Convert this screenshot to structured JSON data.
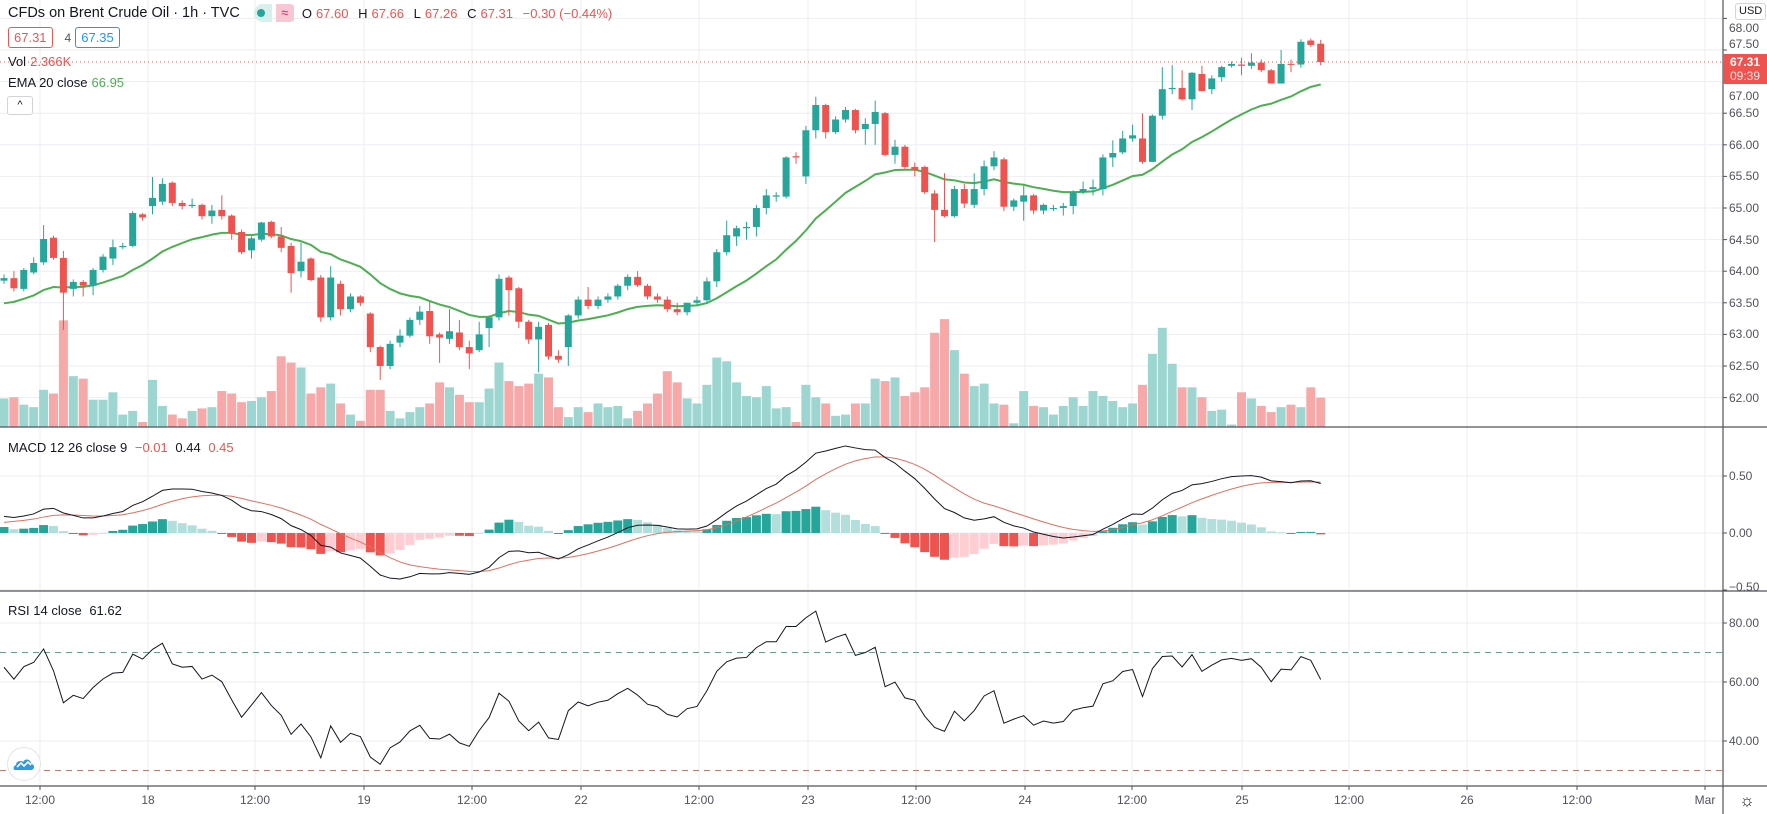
{
  "header": {
    "title": "CFDs on Brent Crude Oil · 1h · TVC",
    "status_icons": [
      "market-open-dot-icon",
      "delayed-data-icon"
    ],
    "delayed_glyph": "≈",
    "ohlc": {
      "o_label": "O",
      "o": "67.60",
      "h_label": "H",
      "h": "67.66",
      "l_label": "L",
      "l": "67.26",
      "c_label": "C",
      "c": "67.31",
      "change": "−0.30 (−0.44%)"
    }
  },
  "trade": {
    "sell": "67.31",
    "spread": "4",
    "buy": "67.35"
  },
  "legends": {
    "vol_label": "Vol",
    "vol_value": "2.366K",
    "ema_label": "EMA 20 close",
    "ema_value": "66.95",
    "collapse_glyph": "^",
    "macd_label": "MACD 12 26 close 9",
    "macd_hist": "−0.01",
    "macd_line": "0.44",
    "macd_signal": "0.45",
    "rsi_label": "RSI 14 close",
    "rsi_value": "61.62"
  },
  "price_axis": {
    "currency": "USD",
    "ticks": [
      "68.00",
      "67.50",
      "67.00",
      "66.50",
      "66.00",
      "65.50",
      "65.00",
      "64.50",
      "64.00",
      "63.50",
      "63.00",
      "62.50",
      "62.00"
    ],
    "last_price": "67.31",
    "countdown": "09:39"
  },
  "macd_axis": {
    "ticks": [
      "0.50",
      "0.00",
      "−0.50"
    ]
  },
  "rsi_axis": {
    "ticks": [
      "80.00",
      "60.00",
      "40.00"
    ]
  },
  "time_axis": {
    "labels": [
      "12:00",
      "18",
      "12:00",
      "19",
      "12:00",
      "22",
      "12:00",
      "23",
      "12:00",
      "24",
      "12:00",
      "25",
      "12:00",
      "26",
      "12:00",
      "Mar"
    ]
  },
  "settings_glyph": "☼",
  "colors": {
    "up": "#26a69a",
    "down": "#ef5350",
    "ema": "#4caf50",
    "macd": "#131722",
    "signal": "#e0705f",
    "rsi": "#131722",
    "grid": "#eceef2"
  },
  "chart_data": {
    "type": "candlestick",
    "title": "CFDs on Brent Crude Oil · 1h · TVC",
    "ylabel": "USD",
    "ylim": [
      61.75,
      68.3
    ],
    "columns": [
      "open",
      "high",
      "low",
      "close"
    ],
    "candles": [
      [
        63.85,
        63.95,
        63.8,
        63.89
      ],
      [
        63.89,
        64.0,
        63.68,
        63.73
      ],
      [
        63.72,
        64.05,
        63.68,
        64.02
      ],
      [
        63.98,
        64.22,
        63.95,
        64.13
      ],
      [
        64.14,
        64.73,
        64.1,
        64.51
      ],
      [
        64.53,
        64.56,
        64.18,
        64.21
      ],
      [
        64.21,
        64.32,
        63.07,
        63.66
      ],
      [
        63.72,
        63.87,
        63.6,
        63.83
      ],
      [
        63.83,
        63.86,
        63.6,
        63.77
      ],
      [
        63.77,
        64.05,
        63.62,
        64.02
      ],
      [
        64.02,
        64.27,
        63.98,
        64.23
      ],
      [
        64.2,
        64.5,
        64.1,
        64.38
      ],
      [
        64.38,
        64.45,
        64.35,
        64.4
      ],
      [
        64.4,
        64.95,
        64.38,
        64.92
      ],
      [
        64.9,
        64.92,
        64.8,
        64.85
      ],
      [
        65.03,
        65.49,
        64.9,
        65.16
      ],
      [
        65.1,
        65.47,
        65.05,
        65.38
      ],
      [
        65.4,
        65.42,
        65.03,
        65.08
      ],
      [
        65.08,
        65.12,
        64.98,
        65.03
      ],
      [
        65.03,
        65.15,
        65.0,
        65.05
      ],
      [
        65.05,
        65.07,
        64.82,
        64.87
      ],
      [
        64.87,
        65.05,
        64.75,
        64.96
      ],
      [
        64.97,
        65.2,
        64.82,
        64.87
      ],
      [
        64.88,
        64.9,
        64.5,
        64.6
      ],
      [
        64.62,
        64.66,
        64.27,
        64.3
      ],
      [
        64.33,
        64.55,
        64.2,
        64.52
      ],
      [
        64.5,
        64.78,
        64.47,
        64.77
      ],
      [
        64.78,
        64.8,
        64.52,
        64.55
      ],
      [
        64.55,
        64.7,
        64.3,
        64.37
      ],
      [
        64.4,
        64.45,
        63.66,
        63.97
      ],
      [
        64.0,
        64.45,
        63.9,
        64.15
      ],
      [
        64.2,
        64.22,
        63.84,
        63.86
      ],
      [
        63.9,
        63.94,
        63.2,
        63.27
      ],
      [
        63.27,
        64.08,
        63.22,
        63.9
      ],
      [
        63.8,
        63.85,
        63.3,
        63.4
      ],
      [
        63.4,
        63.65,
        63.35,
        63.6
      ],
      [
        63.6,
        63.62,
        63.45,
        63.5
      ],
      [
        63.33,
        63.35,
        62.72,
        62.8
      ],
      [
        62.8,
        62.82,
        62.28,
        62.5
      ],
      [
        62.5,
        62.9,
        62.45,
        62.85
      ],
      [
        62.87,
        63.08,
        62.8,
        62.98
      ],
      [
        62.98,
        63.27,
        62.95,
        63.23
      ],
      [
        63.23,
        63.45,
        63.15,
        63.36
      ],
      [
        63.37,
        63.52,
        62.85,
        62.97
      ],
      [
        63.0,
        63.03,
        62.55,
        62.95
      ],
      [
        62.93,
        63.4,
        62.85,
        63.05
      ],
      [
        63.03,
        63.23,
        62.75,
        62.8
      ],
      [
        62.8,
        62.9,
        62.45,
        62.7
      ],
      [
        62.75,
        63.2,
        62.72,
        63.0
      ],
      [
        63.1,
        63.3,
        62.8,
        63.27
      ],
      [
        63.27,
        63.95,
        63.22,
        63.88
      ],
      [
        63.9,
        63.93,
        63.3,
        63.7
      ],
      [
        63.73,
        63.75,
        63.1,
        63.2
      ],
      [
        63.2,
        63.23,
        62.85,
        62.92
      ],
      [
        62.92,
        63.2,
        62.4,
        63.12
      ],
      [
        63.15,
        63.18,
        62.6,
        62.65
      ],
      [
        62.66,
        62.75,
        62.55,
        62.6
      ],
      [
        62.8,
        63.32,
        62.5,
        63.3
      ],
      [
        63.3,
        63.6,
        63.25,
        63.55
      ],
      [
        63.55,
        63.75,
        63.4,
        63.45
      ],
      [
        63.45,
        63.6,
        63.4,
        63.55
      ],
      [
        63.55,
        63.65,
        63.5,
        63.6
      ],
      [
        63.6,
        63.8,
        63.55,
        63.77
      ],
      [
        63.77,
        63.95,
        63.7,
        63.91
      ],
      [
        63.91,
        64.0,
        63.75,
        63.78
      ],
      [
        63.77,
        63.8,
        63.55,
        63.6
      ],
      [
        63.6,
        63.65,
        63.5,
        63.55
      ],
      [
        63.55,
        63.6,
        63.35,
        63.4
      ],
      [
        63.4,
        63.5,
        63.3,
        63.35
      ],
      [
        63.35,
        63.5,
        63.3,
        63.5
      ],
      [
        63.5,
        63.6,
        63.45,
        63.54
      ],
      [
        63.54,
        63.9,
        63.5,
        63.84
      ],
      [
        63.84,
        64.35,
        63.75,
        64.3
      ],
      [
        64.3,
        64.8,
        64.25,
        64.57
      ],
      [
        64.55,
        64.72,
        64.4,
        64.68
      ],
      [
        64.68,
        64.78,
        64.5,
        64.7
      ],
      [
        64.7,
        65.05,
        64.55,
        65.0
      ],
      [
        65.0,
        65.3,
        64.9,
        65.2
      ],
      [
        65.18,
        65.25,
        65.1,
        65.2
      ],
      [
        65.18,
        65.82,
        65.15,
        65.8
      ],
      [
        65.82,
        65.88,
        65.7,
        65.8
      ],
      [
        65.5,
        66.3,
        65.38,
        66.23
      ],
      [
        66.23,
        66.76,
        66.1,
        66.63
      ],
      [
        66.63,
        66.65,
        66.1,
        66.2
      ],
      [
        66.2,
        66.45,
        66.17,
        66.4
      ],
      [
        66.4,
        66.6,
        66.35,
        66.55
      ],
      [
        66.55,
        66.57,
        66.18,
        66.23
      ],
      [
        66.25,
        66.42,
        66.0,
        66.33
      ],
      [
        66.33,
        66.7,
        66.0,
        66.52
      ],
      [
        66.5,
        66.52,
        65.82,
        65.84
      ],
      [
        65.84,
        66.08,
        65.7,
        65.97
      ],
      [
        65.97,
        66.0,
        65.62,
        65.65
      ],
      [
        65.65,
        65.72,
        65.5,
        65.6
      ],
      [
        65.65,
        65.67,
        65.22,
        65.25
      ],
      [
        65.23,
        65.28,
        64.46,
        64.97
      ],
      [
        64.97,
        65.55,
        64.85,
        64.87
      ],
      [
        64.87,
        65.35,
        64.85,
        65.3
      ],
      [
        65.3,
        65.38,
        65.0,
        65.07
      ],
      [
        65.05,
        65.55,
        65.0,
        65.3
      ],
      [
        65.3,
        65.75,
        65.2,
        65.66
      ],
      [
        65.66,
        65.9,
        65.6,
        65.8
      ],
      [
        65.77,
        65.8,
        64.95,
        65.02
      ],
      [
        65.02,
        65.15,
        64.95,
        65.12
      ],
      [
        65.1,
        65.35,
        64.8,
        65.2
      ],
      [
        65.2,
        65.22,
        64.9,
        64.96
      ],
      [
        64.96,
        65.07,
        64.9,
        65.05
      ],
      [
        65.0,
        65.05,
        64.95,
        65.0
      ],
      [
        65.0,
        65.08,
        64.88,
        65.03
      ],
      [
        65.03,
        65.28,
        64.9,
        65.25
      ],
      [
        65.25,
        65.42,
        65.22,
        65.3
      ],
      [
        65.3,
        65.45,
        65.2,
        65.33
      ],
      [
        65.3,
        65.85,
        65.2,
        65.8
      ],
      [
        65.8,
        66.07,
        65.65,
        65.87
      ],
      [
        65.88,
        66.22,
        65.85,
        66.1
      ],
      [
        66.1,
        66.32,
        66.05,
        66.15
      ],
      [
        66.1,
        66.5,
        65.7,
        65.73
      ],
      [
        65.73,
        66.48,
        65.73,
        66.46
      ],
      [
        66.46,
        67.23,
        66.4,
        66.88
      ],
      [
        66.88,
        67.26,
        66.8,
        66.9
      ],
      [
        66.9,
        67.18,
        66.7,
        66.72
      ],
      [
        66.72,
        67.15,
        66.55,
        67.14
      ],
      [
        67.12,
        67.25,
        66.85,
        66.85
      ],
      [
        66.88,
        67.1,
        66.8,
        67.05
      ],
      [
        67.07,
        67.25,
        67.0,
        67.23
      ],
      [
        67.25,
        67.32,
        67.22,
        67.28
      ],
      [
        67.27,
        67.38,
        67.1,
        67.25
      ],
      [
        67.25,
        67.45,
        67.2,
        67.3
      ],
      [
        67.3,
        67.35,
        67.15,
        67.18
      ],
      [
        67.18,
        67.2,
        66.97,
        66.97
      ],
      [
        66.97,
        67.5,
        66.97,
        67.28
      ],
      [
        67.28,
        67.35,
        67.15,
        67.27
      ],
      [
        67.27,
        67.67,
        67.22,
        67.63
      ],
      [
        67.65,
        67.68,
        67.55,
        67.58
      ],
      [
        67.6,
        67.66,
        67.26,
        67.31
      ]
    ],
    "volume_unit": "K",
    "volume": [
      2.3,
      2.4,
      1.8,
      1.6,
      3.0,
      2.7,
      8.6,
      4.1,
      3.9,
      2.2,
      2.2,
      2.8,
      1.0,
      1.3,
      0.4,
      3.8,
      1.7,
      1.0,
      0.7,
      1.3,
      1.5,
      1.6,
      2.9,
      2.7,
      2.0,
      2.1,
      2.4,
      2.9,
      5.7,
      5.2,
      4.8,
      2.7,
      3.2,
      3.5,
      1.9,
      1.0,
      0.5,
      3.0,
      3.0,
      1.3,
      0.7,
      1.2,
      1.6,
      1.9,
      3.6,
      3.2,
      2.6,
      2.0,
      2.0,
      3.1,
      5.2,
      3.7,
      3.3,
      3.5,
      4.3,
      4.0,
      1.6,
      0.8,
      1.6,
      1.2,
      1.9,
      1.6,
      1.7,
      0.7,
      1.3,
      1.9,
      2.7,
      4.5,
      3.6,
      2.3,
      1.9,
      3.4,
      5.6,
      5.3,
      3.6,
      2.5,
      2.4,
      3.3,
      1.5,
      1.6,
      0.4,
      3.4,
      2.4,
      1.9,
      0.9,
      1.0,
      1.9,
      1.9,
      3.9,
      3.7,
      4.0,
      2.5,
      2.8,
      3.2,
      7.6,
      8.7,
      6.2,
      4.3,
      3.3,
      3.5,
      1.9,
      1.8,
      0.3,
      2.9,
      1.7,
      1.6,
      1.0,
      1.7,
      2.4,
      1.7,
      2.9,
      2.5,
      2.1,
      1.6,
      1.9,
      3.4,
      5.9,
      8.0,
      5.1,
      3.2,
      3.2,
      2.4,
      1.3,
      1.4,
      0.2,
      2.8,
      2.3,
      1.7,
      1.2,
      1.6,
      1.8,
      1.6,
      3.2,
      2.366
    ],
    "indicators": {
      "ema": {
        "period": 20,
        "initial": 63.45
      },
      "macd": {
        "fast": 12,
        "slow": 26,
        "signal": 9,
        "initial_fast_ema": 63.69,
        "initial_slow_ema": 63.55,
        "initial_signal": 0.08,
        "ylim": [
          -0.55,
          0.9
        ]
      },
      "rsi": {
        "period": 14,
        "initial_avg_gain": 0.13,
        "initial_avg_loss": 0.07,
        "upper": 70,
        "lower": 30,
        "ylim": [
          25,
          88
        ]
      }
    }
  }
}
